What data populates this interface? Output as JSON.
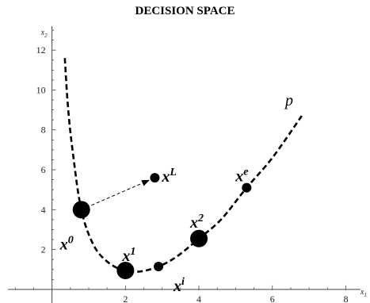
{
  "title": "DECISION SPACE",
  "axes": {
    "x_name_main": "x",
    "x_name_sub": "1",
    "y_name_main": "x",
    "y_name_sub": "2",
    "x_range": [
      -1.2,
      8.4
    ],
    "y_range": [
      -0.8,
      13.2
    ],
    "x_ticks": [
      {
        "value": 2,
        "label": "2"
      },
      {
        "value": 4,
        "label": "4"
      },
      {
        "value": 6,
        "label": "6"
      },
      {
        "value": 8,
        "label": "8"
      }
    ],
    "y_ticks": [
      {
        "value": 2,
        "label": "2"
      },
      {
        "value": 4,
        "label": "4"
      },
      {
        "value": 6,
        "label": "6"
      },
      {
        "value": 8,
        "label": "8"
      },
      {
        "value": 10,
        "label": "10"
      },
      {
        "value": 12,
        "label": "12"
      }
    ]
  },
  "curve": {
    "label": "p",
    "color": "#000000",
    "style": "dashed",
    "points": [
      [
        0.35,
        11.6
      ],
      [
        0.42,
        9.5
      ],
      [
        0.5,
        7.9
      ],
      [
        0.6,
        6.4
      ],
      [
        0.7,
        5.0
      ],
      [
        0.8,
        4.0
      ],
      [
        0.95,
        3.0
      ],
      [
        1.2,
        2.0
      ],
      [
        1.5,
        1.4
      ],
      [
        1.8,
        1.05
      ],
      [
        2.0,
        0.95
      ],
      [
        2.4,
        0.9
      ],
      [
        2.9,
        1.15
      ],
      [
        3.4,
        1.65
      ],
      [
        4.0,
        2.55
      ],
      [
        4.6,
        3.5
      ],
      [
        5.3,
        5.1
      ],
      [
        6.0,
        6.6
      ],
      [
        6.8,
        8.7
      ]
    ]
  },
  "points": [
    {
      "id": "x0",
      "main": "x",
      "sup": "0",
      "x": 0.8,
      "y": 4.0,
      "size": "large"
    },
    {
      "id": "x1",
      "main": "x",
      "sup": "1",
      "x": 2.0,
      "y": 0.95,
      "size": "large"
    },
    {
      "id": "xi",
      "main": "x",
      "sup": "i",
      "x": 2.9,
      "y": 1.15,
      "size": "small"
    },
    {
      "id": "x2",
      "main": "x",
      "sup": "2",
      "x": 4.0,
      "y": 2.55,
      "size": "large"
    },
    {
      "id": "xe",
      "main": "x",
      "sup": "e",
      "x": 5.3,
      "y": 5.1,
      "size": "small"
    },
    {
      "id": "xL",
      "main": "x",
      "sup": "L",
      "x": 2.8,
      "y": 5.6,
      "size": "small"
    }
  ],
  "arrow": {
    "from": "x0",
    "to": "xL",
    "style": "dashed"
  }
}
